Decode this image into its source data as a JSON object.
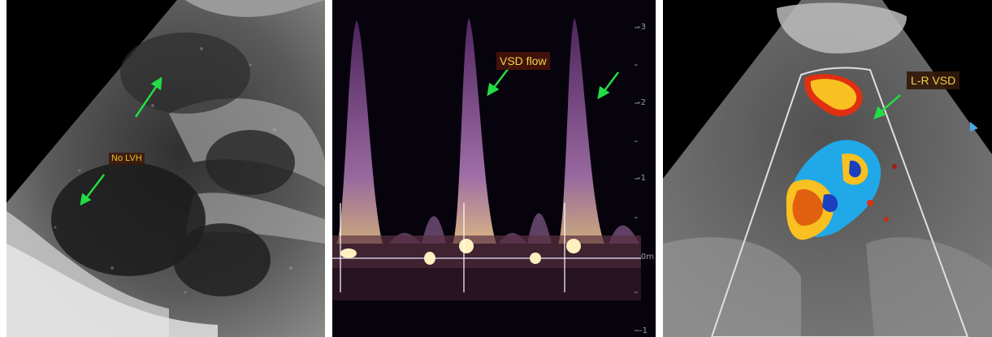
{
  "panels": {
    "left": {
      "annotation": "No LVH"
    },
    "middle": {
      "annotation": "VSD flow",
      "scale": {
        "tick_3": "-3",
        "tick_2": "-2",
        "tick_1": "-1",
        "tick_0": "0m",
        "tick_neg1": "-1"
      }
    },
    "right": {
      "annotation": "L-R VSD"
    }
  },
  "colors": {
    "arrow": "#22dd44",
    "label_text": "#f4d24a",
    "label_bg": "#3c1a0a",
    "doppler_trace": "#b07ab8",
    "color_flow_red": "#e03010",
    "color_flow_yellow": "#f8c020",
    "color_flow_blue": "#20a8e8"
  },
  "icons": {
    "arrow": "arrow-icon",
    "marker": "triangle-marker-icon"
  }
}
